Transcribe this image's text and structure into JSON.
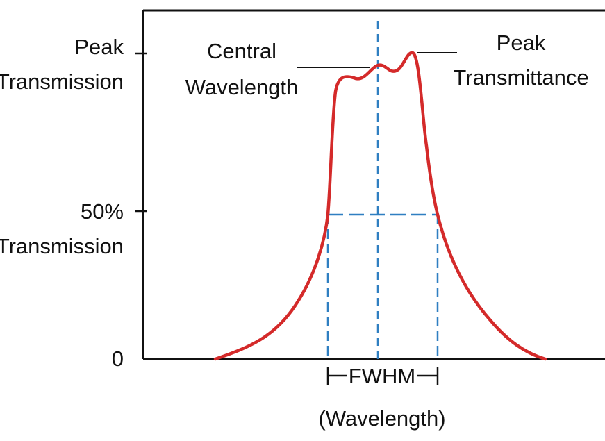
{
  "diagram": {
    "y_labels": {
      "peak_line1": "Peak",
      "peak_line2": "Transmission",
      "half_line1": "50%",
      "half_line2": "Transmission",
      "zero": "0"
    },
    "annotations": {
      "central_line1": "Central",
      "central_line2": "Wavelength",
      "peak_t_line1": "Peak",
      "peak_t_line2": "Transmittance"
    },
    "x_label": {
      "line1": "FWHM",
      "line2": "(Wavelength)"
    },
    "colors": {
      "curve": "#d42a2a",
      "guides": "#2f7fc1",
      "axes": "#111111"
    }
  }
}
